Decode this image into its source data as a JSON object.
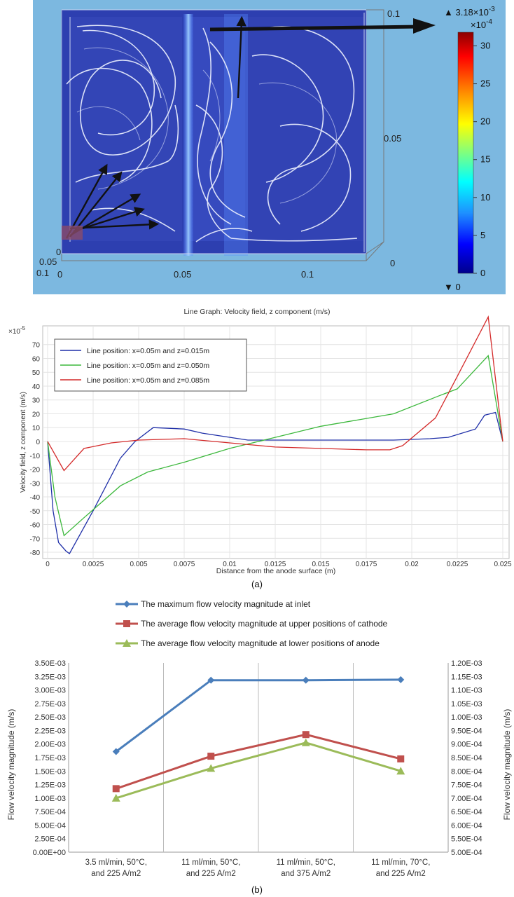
{
  "top_panel": {
    "colorbar": {
      "max_label": "▲ 3.18×10",
      "max_exp": "-3",
      "scale_label": "×10",
      "scale_exp": "-4",
      "min_label": "▼ 0",
      "ticks": [
        "30",
        "25",
        "20",
        "15",
        "10",
        "5",
        "0"
      ],
      "colors": [
        "#8b0000",
        "#ff0000",
        "#ff8c00",
        "#ffff00",
        "#7fff7f",
        "#00ffff",
        "#1e90ff",
        "#0000ff",
        "#00008b"
      ]
    },
    "axis_labels": {
      "z_top": "0.1",
      "z_mid": "0.05",
      "z_bottom": "0",
      "x_0": "0",
      "x_005": "0.05",
      "x_01": "0.1",
      "y_0": "0",
      "y_005": "0.05",
      "y_01": "0.1"
    },
    "background": "#7cb8e0",
    "box_color": "#2a3fa8"
  },
  "line_graph": {
    "chart_data": {
      "type": "line",
      "title": "Line Graph: Velocity field, z component (m/s)",
      "xlabel": "Distance from the anode surface (m)",
      "ylabel": "Velocity field, z component (m/s)",
      "y_multiplier": "×10",
      "y_multiplier_exp": "-5",
      "xlim": [
        0,
        0.025
      ],
      "ylim": [
        -82,
        82
      ],
      "x_ticks": [
        "0",
        "0.0025",
        "0.005",
        "0.0075",
        "0.01",
        "0.0125",
        "0.015",
        "0.0175",
        "0.02",
        "0.0225",
        "0.025"
      ],
      "y_ticks": [
        "70",
        "60",
        "50",
        "40",
        "30",
        "20",
        "10",
        "0",
        "-10",
        "-20",
        "-30",
        "-40",
        "-50",
        "-60",
        "-70",
        "-80"
      ],
      "grid": true,
      "legend_position": "top-left",
      "series": [
        {
          "name": "Line position: x=0.05m and z=0.015m",
          "color": "#1f2fa8",
          "points": [
            [
              0,
              0
            ],
            [
              0.0003,
              -50
            ],
            [
              0.0006,
              -73
            ],
            [
              0.001,
              -79
            ],
            [
              0.0012,
              -81
            ],
            [
              0.0025,
              -50
            ],
            [
              0.004,
              -12
            ],
            [
              0.0048,
              0
            ],
            [
              0.0058,
              10
            ],
            [
              0.0075,
              9
            ],
            [
              0.0085,
              6
            ],
            [
              0.011,
              1
            ],
            [
              0.015,
              1
            ],
            [
              0.019,
              1
            ],
            [
              0.021,
              2
            ],
            [
              0.022,
              3
            ],
            [
              0.0235,
              9
            ],
            [
              0.024,
              19
            ],
            [
              0.0246,
              21
            ],
            [
              0.025,
              0
            ]
          ]
        },
        {
          "name": "Line position: x=0.05m and z=0.050m",
          "color": "#3cb83c",
          "points": [
            [
              0,
              0
            ],
            [
              0.0004,
              -40
            ],
            [
              0.0009,
              -68
            ],
            [
              0.002,
              -55
            ],
            [
              0.004,
              -32
            ],
            [
              0.0055,
              -22
            ],
            [
              0.0075,
              -15
            ],
            [
              0.01,
              -5
            ],
            [
              0.0125,
              3
            ],
            [
              0.015,
              11
            ],
            [
              0.019,
              20
            ],
            [
              0.0215,
              33
            ],
            [
              0.0225,
              38
            ],
            [
              0.0242,
              62
            ],
            [
              0.025,
              0
            ]
          ]
        },
        {
          "name": "Line position: x=0.05m and z=0.085m",
          "color": "#d42a2a",
          "points": [
            [
              0,
              0
            ],
            [
              0.0009,
              -21
            ],
            [
              0.002,
              -5
            ],
            [
              0.0035,
              -1
            ],
            [
              0.005,
              1
            ],
            [
              0.0075,
              2
            ],
            [
              0.01,
              -1
            ],
            [
              0.0125,
              -4
            ],
            [
              0.015,
              -5
            ],
            [
              0.0175,
              -6
            ],
            [
              0.0188,
              -6
            ],
            [
              0.0195,
              -3
            ],
            [
              0.0213,
              17
            ],
            [
              0.0225,
              47
            ],
            [
              0.0242,
              90
            ],
            [
              0.025,
              0
            ]
          ]
        }
      ]
    },
    "caption": "(a)"
  },
  "flow_chart": {
    "chart_data": {
      "type": "line",
      "categories": [
        "3.5 ml/min, 50°C, and 225 A/m2",
        "11 ml/min, 50°C, and 225 A/m2",
        "11 ml/min, 50°C, and 375 A/m2",
        "11 ml/min, 70°C, and 225 A/m2"
      ],
      "category_lines": [
        [
          "3.5 ml/min, 50°C,",
          "and 225 A/m2"
        ],
        [
          "11 ml/min, 50°C,",
          "and 225 A/m2"
        ],
        [
          "11 ml/min, 50°C,",
          "and 375 A/m2"
        ],
        [
          "11 ml/min, 70°C,",
          "and 225 A/m2"
        ]
      ],
      "ylabel": "Flow velocity magnitude (m/s)",
      "ylabel_right": "Flow velocity magnitude (m/s)",
      "ylim": [
        0,
        0.0035
      ],
      "ylim_right": [
        0.0005,
        0.0012
      ],
      "y_ticks": [
        "3.50E-03",
        "3.25E-03",
        "3.00E-03",
        "2.75E-03",
        "2.50E-03",
        "2.25E-03",
        "2.00E-03",
        "1.75E-03",
        "1.50E-03",
        "1.25E-03",
        "1.00E-03",
        "7.50E-04",
        "5.00E-04",
        "2.50E-04",
        "0.00E+00"
      ],
      "y_ticks_right": [
        "1.20E-03",
        "1.15E-03",
        "1.10E-03",
        "1.05E-03",
        "1.00E-03",
        "9.50E-04",
        "9.00E-04",
        "8.50E-04",
        "8.00E-04",
        "7.50E-04",
        "7.00E-04",
        "6.50E-04",
        "6.00E-04",
        "5.50E-04",
        "5.00E-04"
      ],
      "legend_position": "top",
      "series": [
        {
          "name": "The maximum flow velocity magnitude at inlet",
          "color": "#4a7ebb",
          "marker": "diamond",
          "axis": "left",
          "values": [
            0.00186,
            0.00318,
            0.00318,
            0.00319
          ]
        },
        {
          "name": "The average flow velocity magnitude at upper positions of cathode",
          "color": "#c0504d",
          "marker": "square",
          "axis": "right",
          "values": [
            0.000735,
            0.000855,
            0.000935,
            0.000845
          ]
        },
        {
          "name": "The average flow velocity magnitude at lower positions of anode",
          "color": "#9bbb59",
          "marker": "triangle",
          "axis": "right",
          "values": [
            0.0007,
            0.00081,
            0.000905,
            0.0008
          ]
        }
      ]
    },
    "caption": "(b)"
  }
}
